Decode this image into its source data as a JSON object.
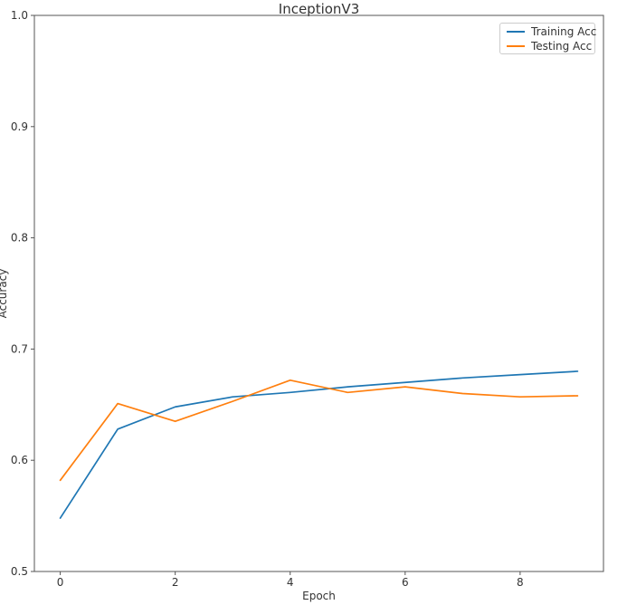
{
  "chart_data": {
    "type": "line",
    "title": "InceptionV3",
    "xlabel": "Epoch",
    "ylabel": "Accuracy",
    "x": [
      0,
      1,
      2,
      3,
      4,
      5,
      6,
      7,
      8,
      9
    ],
    "series": [
      {
        "name": "Training Acc",
        "color": "#1f77b4",
        "values": [
          0.548,
          0.628,
          0.648,
          0.657,
          0.661,
          0.666,
          0.67,
          0.674,
          0.677,
          0.68
        ]
      },
      {
        "name": "Testing Acc",
        "color": "#ff7f0e",
        "values": [
          0.582,
          0.651,
          0.635,
          0.653,
          0.672,
          0.661,
          0.666,
          0.66,
          0.657,
          0.658
        ]
      }
    ],
    "xlim": [
      -0.45,
      9.45
    ],
    "ylim": [
      0.5,
      1.0
    ],
    "xticks": [
      0,
      2,
      4,
      6,
      8
    ],
    "yticks": [
      0.5,
      0.6,
      0.7,
      0.8,
      0.9,
      1.0
    ],
    "grid": false,
    "legend_position": "upper right",
    "spine_color": "#555555",
    "text_color": "#333333"
  }
}
